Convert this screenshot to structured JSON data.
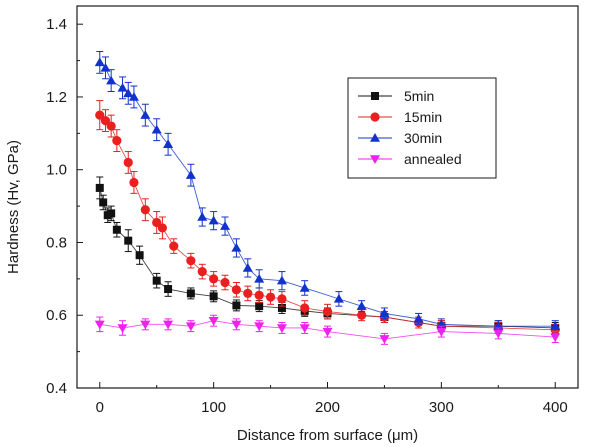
{
  "chart_data": {
    "type": "scatter",
    "title": "",
    "xlabel": "Distance from surface (μm)",
    "ylabel": "Hardness (Hv, GPa)",
    "xlim": [
      -20,
      420
    ],
    "ylim": [
      0.4,
      1.45
    ],
    "xticks": [
      0,
      100,
      200,
      300,
      400
    ],
    "yticks": [
      0.4,
      0.6,
      0.8,
      1.0,
      1.2,
      1.4
    ],
    "xtick_labels": [
      "0",
      "100",
      "200",
      "300",
      "400"
    ],
    "ytick_labels": [
      "0.4",
      "0.6",
      "0.8",
      "1.0",
      "1.2",
      "1.4"
    ],
    "grid": false,
    "legend_position": "top-right",
    "series": [
      {
        "name": "5min",
        "color": "#111111",
        "marker": "square",
        "x": [
          0,
          3,
          7,
          10,
          15,
          25,
          35,
          50,
          60,
          80,
          100,
          120,
          140,
          160,
          180,
          200,
          250,
          300,
          350,
          400
        ],
        "y": [
          0.95,
          0.91,
          0.875,
          0.88,
          0.835,
          0.805,
          0.765,
          0.695,
          0.672,
          0.66,
          0.652,
          0.627,
          0.625,
          0.62,
          0.612,
          0.605,
          0.595,
          0.57,
          0.57,
          0.565
        ],
        "err": [
          0.03,
          0.02,
          0.02,
          0.02,
          0.02,
          0.03,
          0.025,
          0.02,
          0.02,
          0.015,
          0.015,
          0.015,
          0.015,
          0.015,
          0.015,
          0.015,
          0.015,
          0.015,
          0.015,
          0.015
        ]
      },
      {
        "name": "15min",
        "color": "#e8201f",
        "marker": "circle",
        "x": [
          0,
          5,
          10,
          15,
          25,
          30,
          40,
          50,
          55,
          65,
          80,
          90,
          100,
          110,
          120,
          130,
          140,
          150,
          160,
          180,
          200,
          230,
          250,
          280,
          300,
          350,
          400
        ],
        "y": [
          1.15,
          1.135,
          1.12,
          1.08,
          1.02,
          0.965,
          0.89,
          0.855,
          0.84,
          0.79,
          0.75,
          0.72,
          0.7,
          0.69,
          0.67,
          0.66,
          0.655,
          0.65,
          0.645,
          0.62,
          0.61,
          0.6,
          0.595,
          0.58,
          0.57,
          0.565,
          0.56
        ],
        "err": [
          0.04,
          0.03,
          0.03,
          0.03,
          0.03,
          0.03,
          0.03,
          0.03,
          0.03,
          0.02,
          0.02,
          0.02,
          0.02,
          0.02,
          0.02,
          0.02,
          0.02,
          0.02,
          0.02,
          0.02,
          0.02,
          0.015,
          0.015,
          0.015,
          0.015,
          0.015,
          0.015
        ]
      },
      {
        "name": "30min",
        "color": "#1133cc",
        "marker": "triangle-up",
        "x": [
          0,
          5,
          10,
          20,
          25,
          30,
          40,
          50,
          60,
          80,
          90,
          100,
          110,
          120,
          130,
          140,
          160,
          180,
          210,
          230,
          250,
          280,
          300,
          350,
          400
        ],
        "y": [
          1.295,
          1.28,
          1.245,
          1.225,
          1.21,
          1.2,
          1.15,
          1.11,
          1.07,
          0.985,
          0.87,
          0.86,
          0.845,
          0.785,
          0.73,
          0.7,
          0.695,
          0.675,
          0.645,
          0.625,
          0.605,
          0.59,
          0.575,
          0.57,
          0.57
        ],
        "err": [
          0.03,
          0.03,
          0.03,
          0.03,
          0.03,
          0.03,
          0.03,
          0.03,
          0.03,
          0.03,
          0.025,
          0.025,
          0.025,
          0.025,
          0.025,
          0.025,
          0.025,
          0.02,
          0.02,
          0.015,
          0.015,
          0.015,
          0.015,
          0.015,
          0.015
        ]
      },
      {
        "name": "annealed",
        "color": "#ee22ee",
        "marker": "triangle-down",
        "x": [
          0,
          20,
          40,
          60,
          80,
          100,
          120,
          140,
          160,
          180,
          200,
          250,
          300,
          350,
          400
        ],
        "y": [
          0.575,
          0.565,
          0.575,
          0.575,
          0.57,
          0.585,
          0.575,
          0.57,
          0.565,
          0.565,
          0.555,
          0.535,
          0.555,
          0.55,
          0.54
        ],
        "err": [
          0.02,
          0.02,
          0.015,
          0.015,
          0.015,
          0.015,
          0.015,
          0.015,
          0.015,
          0.015,
          0.015,
          0.015,
          0.015,
          0.015,
          0.015
        ]
      }
    ]
  }
}
